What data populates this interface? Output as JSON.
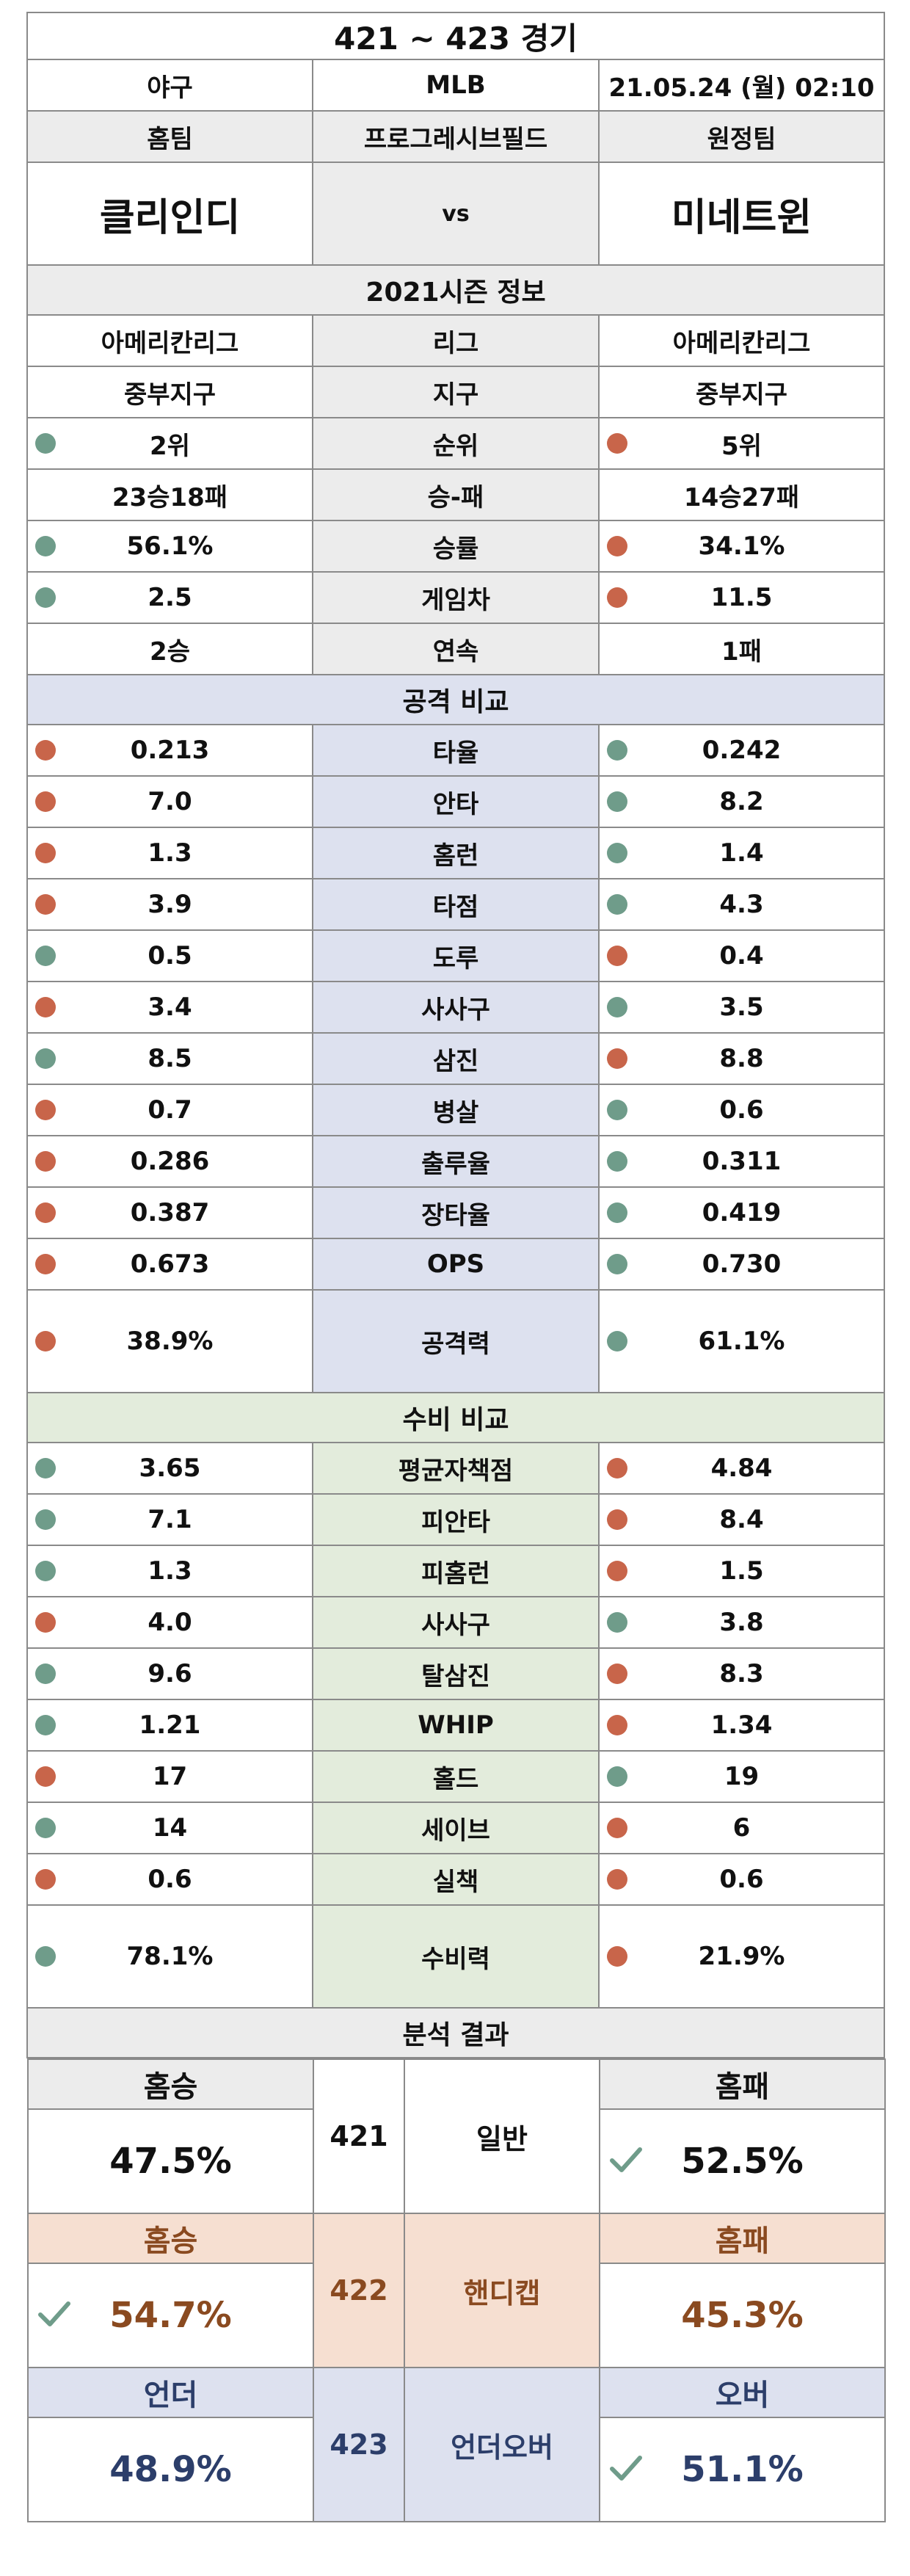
{
  "title": "421 ~ 423 경기",
  "sport": "야구",
  "league_name": "MLB",
  "datetime": "21.05.24 (월) 02:10",
  "home_label": "홈팀",
  "stadium": "프로그레시브필드",
  "away_label": "원정팀",
  "home_team": "클리인디",
  "vs": "vs",
  "away_team": "미네트윈",
  "season_title": "2021시즌 정보",
  "season_rows": [
    {
      "label": "리그",
      "home": "아메리칸리그",
      "away": "아메리칸리그",
      "hd": "",
      "ad": ""
    },
    {
      "label": "지구",
      "home": "중부지구",
      "away": "중부지구",
      "hd": "",
      "ad": ""
    },
    {
      "label": "순위",
      "home": "2위",
      "away": "5위",
      "hd": "green",
      "ad": "red"
    },
    {
      "label": "승-패",
      "home": "23승18패",
      "away": "14승27패",
      "hd": "",
      "ad": ""
    },
    {
      "label": "승률",
      "home": "56.1%",
      "away": "34.1%",
      "hd": "green",
      "ad": "red"
    },
    {
      "label": "게임차",
      "home": "2.5",
      "away": "11.5",
      "hd": "green",
      "ad": "red"
    },
    {
      "label": "연속",
      "home": "2승",
      "away": "1패",
      "hd": "",
      "ad": ""
    }
  ],
  "attack_title": "공격 비교",
  "attack_rows": [
    {
      "label": "타율",
      "home": "0.213",
      "away": "0.242",
      "hd": "red",
      "ad": "green"
    },
    {
      "label": "안타",
      "home": "7.0",
      "away": "8.2",
      "hd": "red",
      "ad": "green"
    },
    {
      "label": "홈런",
      "home": "1.3",
      "away": "1.4",
      "hd": "red",
      "ad": "green"
    },
    {
      "label": "타점",
      "home": "3.9",
      "away": "4.3",
      "hd": "red",
      "ad": "green"
    },
    {
      "label": "도루",
      "home": "0.5",
      "away": "0.4",
      "hd": "green",
      "ad": "red"
    },
    {
      "label": "사사구",
      "home": "3.4",
      "away": "3.5",
      "hd": "red",
      "ad": "green"
    },
    {
      "label": "삼진",
      "home": "8.5",
      "away": "8.8",
      "hd": "green",
      "ad": "red"
    },
    {
      "label": "병살",
      "home": "0.7",
      "away": "0.6",
      "hd": "red",
      "ad": "green"
    },
    {
      "label": "출루율",
      "home": "0.286",
      "away": "0.311",
      "hd": "red",
      "ad": "green"
    },
    {
      "label": "장타율",
      "home": "0.387",
      "away": "0.419",
      "hd": "red",
      "ad": "green"
    },
    {
      "label": "OPS",
      "home": "0.673",
      "away": "0.730",
      "hd": "red",
      "ad": "green"
    }
  ],
  "attack_power": {
    "label": "공격력",
    "home": "38.9%",
    "away": "61.1%",
    "hd": "red",
    "ad": "green"
  },
  "defense_title": "수비 비교",
  "defense_rows": [
    {
      "label": "평균자책점",
      "home": "3.65",
      "away": "4.84",
      "hd": "green",
      "ad": "red"
    },
    {
      "label": "피안타",
      "home": "7.1",
      "away": "8.4",
      "hd": "green",
      "ad": "red"
    },
    {
      "label": "피홈런",
      "home": "1.3",
      "away": "1.5",
      "hd": "green",
      "ad": "red"
    },
    {
      "label": "사사구",
      "home": "4.0",
      "away": "3.8",
      "hd": "red",
      "ad": "green"
    },
    {
      "label": "탈삼진",
      "home": "9.6",
      "away": "8.3",
      "hd": "green",
      "ad": "red"
    },
    {
      "label": "WHIP",
      "home": "1.21",
      "away": "1.34",
      "hd": "green",
      "ad": "red"
    },
    {
      "label": "홀드",
      "home": "17",
      "away": "19",
      "hd": "red",
      "ad": "green"
    },
    {
      "label": "세이브",
      "home": "14",
      "away": "6",
      "hd": "green",
      "ad": "red"
    },
    {
      "label": "실책",
      "home": "0.6",
      "away": "0.6",
      "hd": "red",
      "ad": "red"
    }
  ],
  "defense_power": {
    "label": "수비력",
    "home": "78.1%",
    "away": "21.9%",
    "hd": "green",
    "ad": "red"
  },
  "analysis_title": "분석 결과",
  "analysis": [
    {
      "id": "421",
      "name": "일반",
      "left_label": "홈승",
      "left_value": "47.5%",
      "right_label": "홈패",
      "right_value": "52.5%",
      "pick": "right",
      "cls": "gn"
    },
    {
      "id": "422",
      "name": "핸디캡",
      "left_label": "홈승",
      "left_value": "54.7%",
      "right_label": "홈패",
      "right_value": "45.3%",
      "pick": "left",
      "cls": "hc"
    },
    {
      "id": "423",
      "name": "언더오버",
      "left_label": "언더",
      "left_value": "48.9%",
      "right_label": "오버",
      "right_value": "51.1%",
      "pick": "right",
      "cls": "uo"
    }
  ],
  "colors": {
    "green_dot": "#6f9c8a",
    "red_dot": "#c8654a",
    "check": "#6f9c8a"
  }
}
